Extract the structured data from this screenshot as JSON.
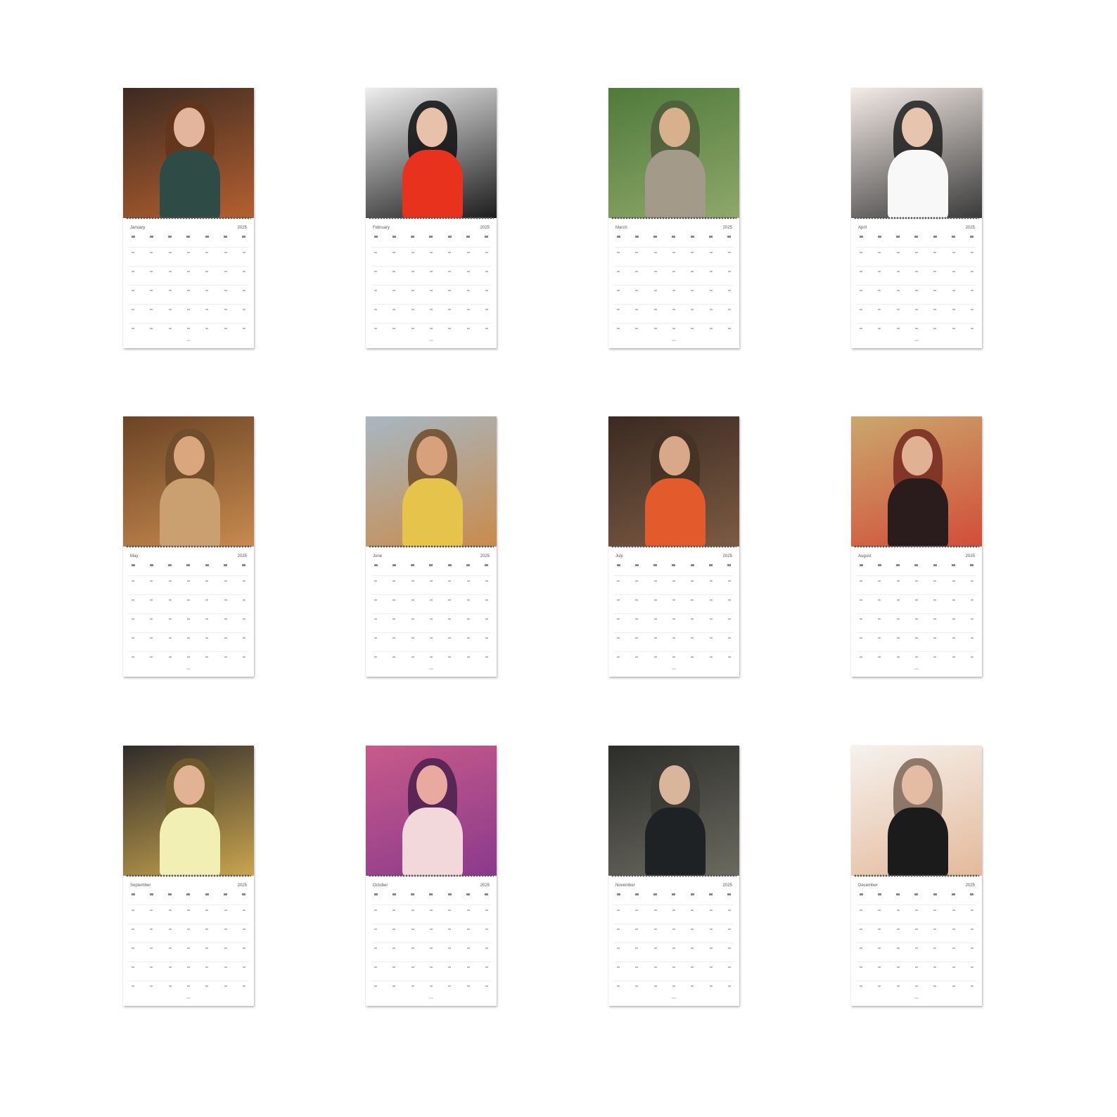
{
  "calendar_pages": [
    {
      "month": "January",
      "year": "2025",
      "photo": {
        "bg": "#3b2a22",
        "accent": "#b5602f",
        "skin": "#e3b59c",
        "top": "#2f4b46"
      }
    },
    {
      "month": "February",
      "year": "2025",
      "photo": {
        "bg": "#eeeeee",
        "accent": "#1c1c1c",
        "skin": "#e8c1aa",
        "top": "#e8321d"
      }
    },
    {
      "month": "March",
      "year": "2025",
      "photo": {
        "bg": "#4f7a3a",
        "accent": "#8ea86a",
        "skin": "#d8b08e",
        "top": "#a39a8a"
      }
    },
    {
      "month": "April",
      "year": "2025",
      "photo": {
        "bg": "#f4ebe6",
        "accent": "#3a3a3a",
        "skin": "#e7c4ae",
        "top": "#f8f8f8"
      }
    },
    {
      "month": "May",
      "year": "2025",
      "photo": {
        "bg": "#6a4424",
        "accent": "#c88a4f",
        "skin": "#d9a67d",
        "top": "#caa070"
      }
    },
    {
      "month": "June",
      "year": "2025",
      "photo": {
        "bg": "#a7b7c3",
        "accent": "#c98b4b",
        "skin": "#d7a27b",
        "top": "#e6c34a"
      }
    },
    {
      "month": "July",
      "year": "2025",
      "photo": {
        "bg": "#3a2a22",
        "accent": "#7c5b42",
        "skin": "#d9a888",
        "top": "#e35b2c"
      }
    },
    {
      "month": "August",
      "year": "2025",
      "photo": {
        "bg": "#caa86c",
        "accent": "#d24d38",
        "skin": "#e0b293",
        "top": "#2a1c1c"
      }
    },
    {
      "month": "September",
      "year": "2025",
      "photo": {
        "bg": "#2f2b2a",
        "accent": "#c9a54e",
        "skin": "#e1b394",
        "top": "#f2efb4"
      }
    },
    {
      "month": "October",
      "year": "2025",
      "photo": {
        "bg": "#c85a8a",
        "accent": "#8a3a8c",
        "skin": "#e9a9a0",
        "top": "#f2d8da"
      }
    },
    {
      "month": "November",
      "year": "2025",
      "photo": {
        "bg": "#2c2c2a",
        "accent": "#6b6a60",
        "skin": "#d9b59c",
        "top": "#1f2224"
      }
    },
    {
      "month": "December",
      "year": "2025",
      "photo": {
        "bg": "#f5f2ee",
        "accent": "#e4b99a",
        "skin": "#e3bca3",
        "top": "#1b1b1b"
      }
    }
  ]
}
